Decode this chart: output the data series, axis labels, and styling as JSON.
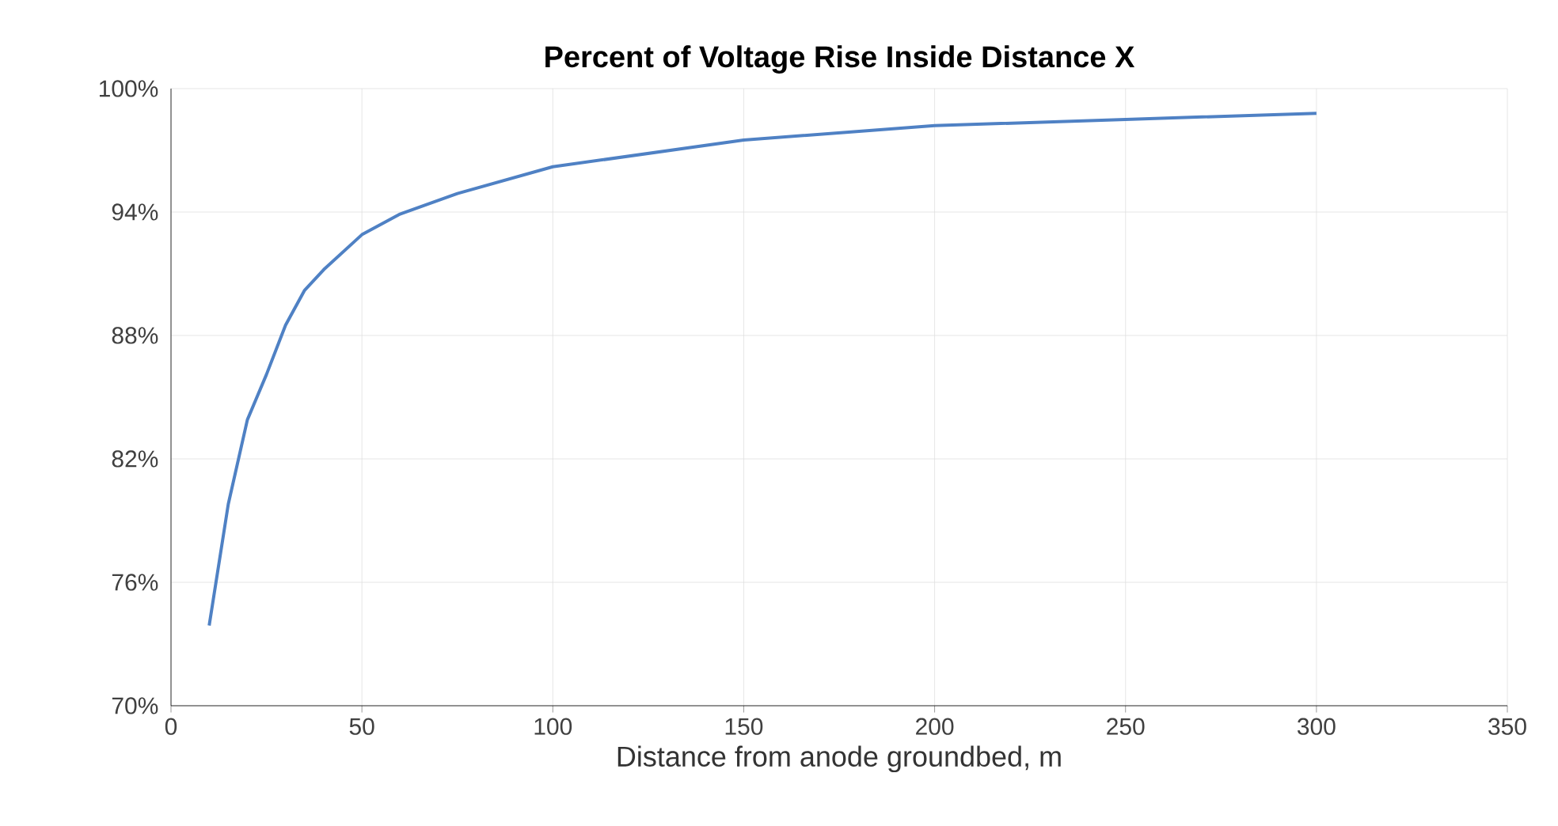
{
  "chart_data": {
    "type": "line",
    "title": "Percent of Voltage Rise Inside Distance X",
    "xlabel": "Distance from anode groundbed, m",
    "x": [
      10,
      15,
      20,
      25,
      30,
      35,
      40,
      50,
      60,
      75,
      100,
      150,
      200,
      250,
      300
    ],
    "series": [
      {
        "color": "#4f81c4",
        "values": [
          73.9,
          79.8,
          83.9,
          86.1,
          88.5,
          90.2,
          91.2,
          92.9,
          93.9,
          94.9,
          96.2,
          97.5,
          98.2,
          98.5,
          98.8
        ]
      }
    ],
    "xlim": [
      0,
      350
    ],
    "xticks": [
      0,
      50,
      100,
      150,
      200,
      250,
      300,
      350
    ],
    "ylim": [
      70,
      100
    ],
    "yticks": [
      {
        "value": 70,
        "label": "70%"
      },
      {
        "value": 76,
        "label": "76%"
      },
      {
        "value": 82,
        "label": "82%"
      },
      {
        "value": 88,
        "label": "88%"
      },
      {
        "value": 94,
        "label": "94%"
      },
      {
        "value": 100,
        "label": "100%"
      }
    ],
    "grid": true,
    "marker": "none",
    "line_style": "solid"
  }
}
